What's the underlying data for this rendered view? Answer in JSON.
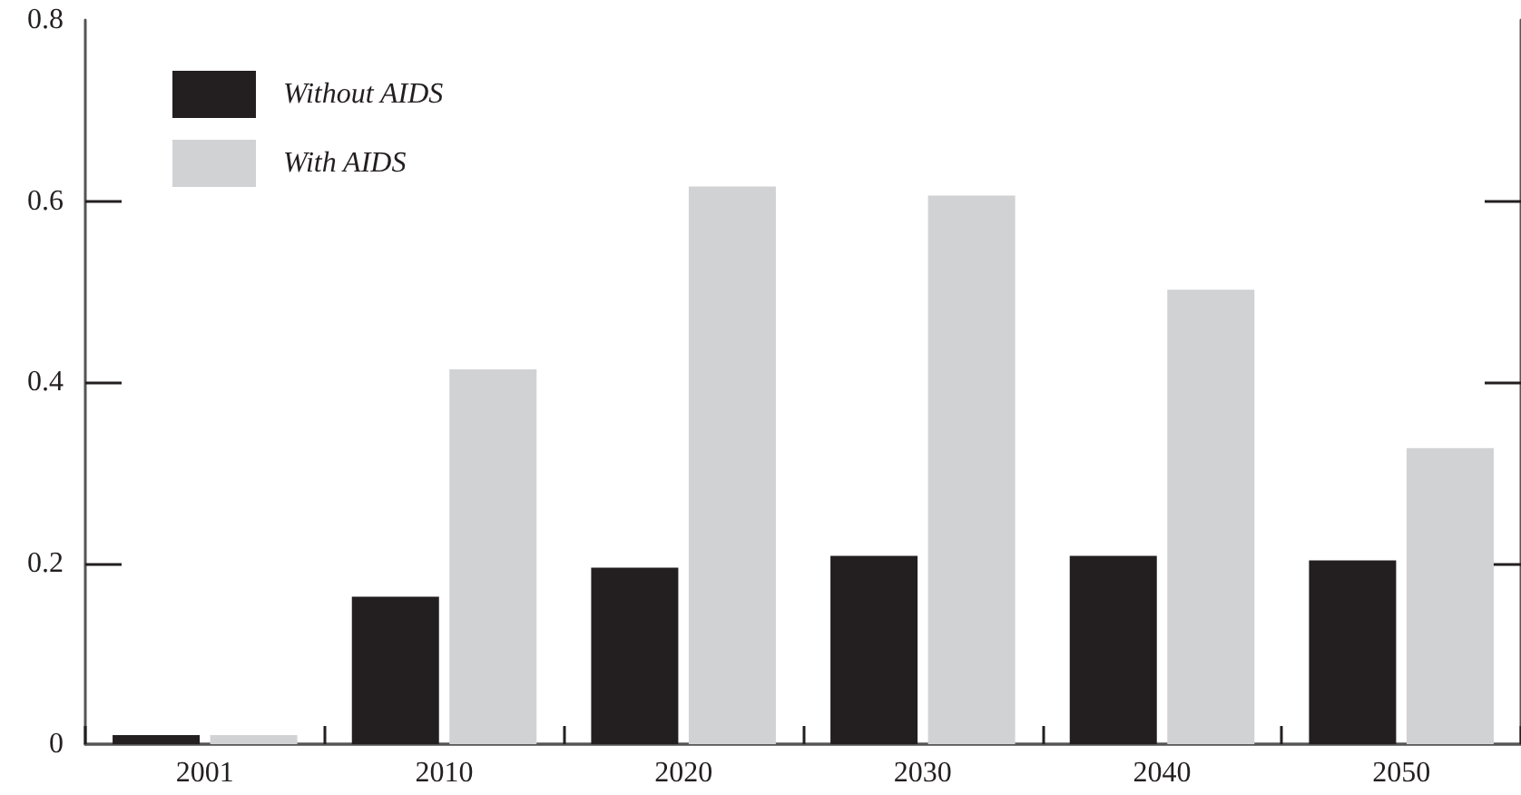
{
  "chart_data": {
    "type": "bar",
    "categories": [
      "2001",
      "2010",
      "2020",
      "2030",
      "2040",
      "2050"
    ],
    "series": [
      {
        "name": "Without AIDS",
        "color": "#231f20",
        "values": [
          0.01,
          0.163,
          0.195,
          0.208,
          0.208,
          0.203
        ]
      },
      {
        "name": "With AIDS",
        "color": "#d1d2d4",
        "values": [
          0.01,
          0.414,
          0.616,
          0.606,
          0.502,
          0.327
        ]
      }
    ],
    "ylim": [
      0,
      0.8
    ],
    "yticks": [
      0,
      0.2,
      0.4,
      0.6,
      0.8
    ],
    "grid": false,
    "legend": "top left"
  }
}
